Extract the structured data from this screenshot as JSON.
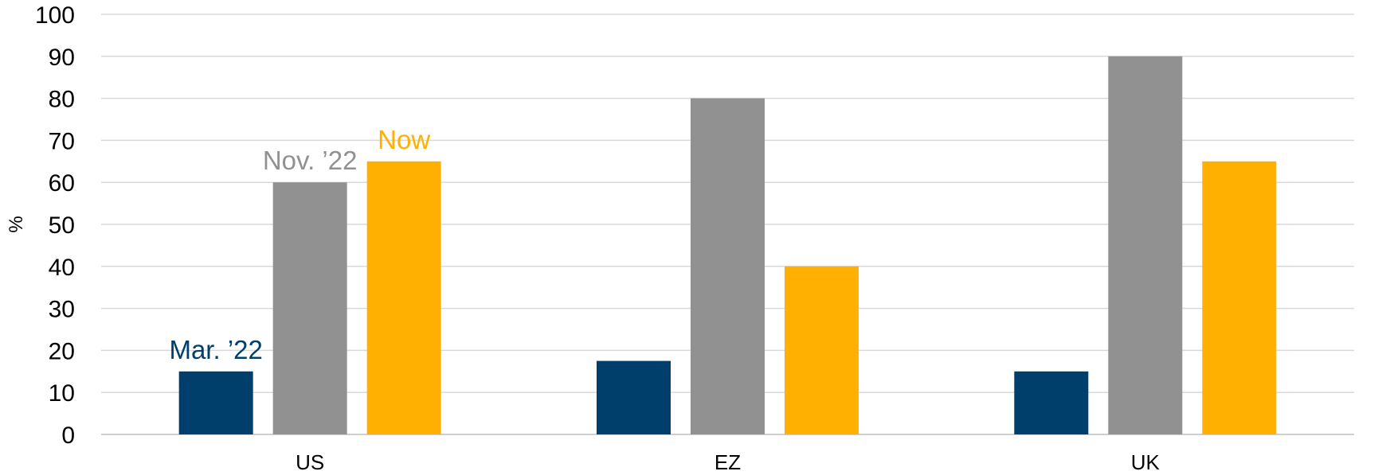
{
  "chart_data": {
    "type": "bar",
    "title": "",
    "xlabel": "",
    "ylabel": "%",
    "ylim": [
      0,
      100
    ],
    "yticks": [
      0,
      10,
      20,
      30,
      40,
      50,
      60,
      70,
      80,
      90,
      100
    ],
    "grid": true,
    "legend": "none",
    "categories": [
      "US",
      "EZ",
      "UK"
    ],
    "series": [
      {
        "name": "Mar. ’22",
        "color": "#003f6b",
        "values": [
          15,
          17.5,
          15
        ]
      },
      {
        "name": "Nov. ’22",
        "color": "#919191",
        "values": [
          60,
          80,
          90
        ]
      },
      {
        "name": "Now",
        "color": "#ffb000",
        "values": [
          65,
          40,
          65
        ]
      }
    ]
  }
}
